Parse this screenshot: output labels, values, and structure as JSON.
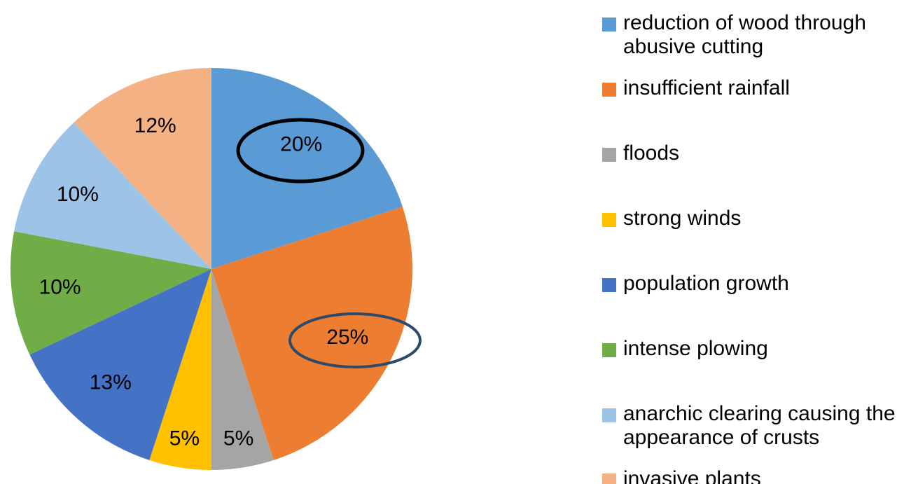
{
  "chart_data": {
    "type": "pie",
    "categories": [
      "reduction of wood through abusive cutting",
      "insufficient rainfall",
      "floods",
      "strong winds",
      "population growth",
      "intense plowing",
      "anarchic clearing causing the appearance of crusts",
      "invasive plants"
    ],
    "values": [
      20,
      25,
      5,
      5,
      13,
      10,
      10,
      12
    ],
    "value_labels": [
      "20%",
      "25%",
      "5%",
      "5%",
      "13%",
      "10%",
      "10%",
      "12%"
    ],
    "colors": [
      "#5b9bd5",
      "#ed7d31",
      "#a5a5a5",
      "#ffc000",
      "#4472c4",
      "#70ad47",
      "#9dc3e6",
      "#f4b183"
    ]
  }
}
